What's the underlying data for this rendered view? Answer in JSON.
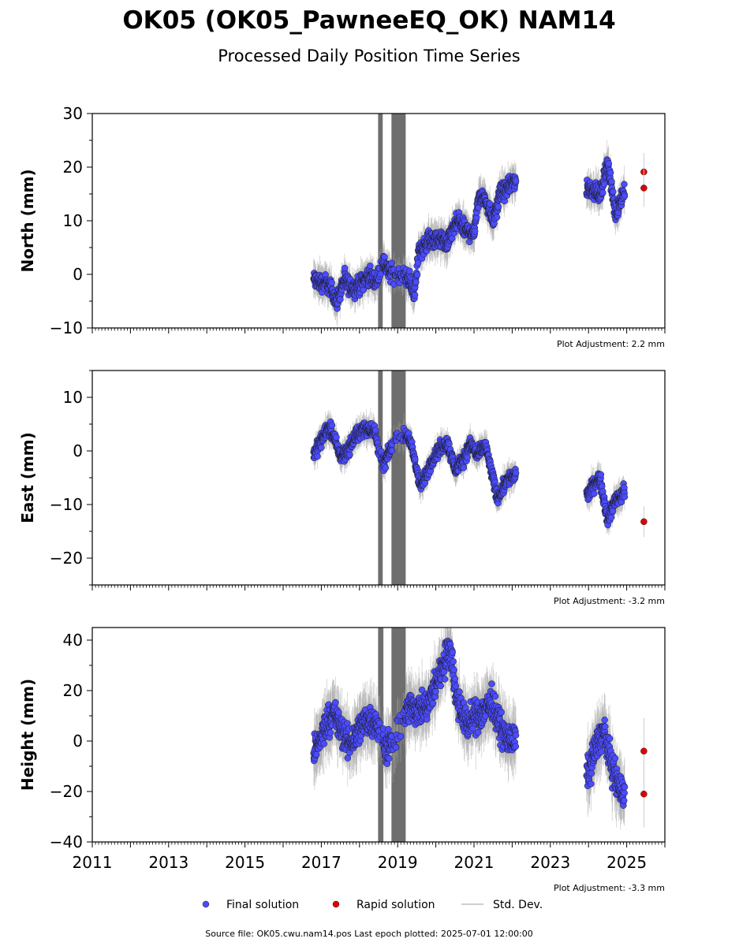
{
  "title": "OK05 (OK05_PawneeEQ_OK) NAM14",
  "subtitle": "Processed Daily Position Time Series",
  "footer": "Source file: OK05.cwu.nam14.pos  Last epoch plotted: 2025-07-01 12:00:00",
  "legend": {
    "final": "Final solution",
    "rapid": "Rapid solution",
    "std": "Std. Dev."
  },
  "colors": {
    "final": "#4b4bff",
    "rapid": "#e00000",
    "std": "#a9a9a9",
    "gap": "#6e6e6e"
  },
  "chart_data": [
    {
      "type": "scatter",
      "ylabel": "North (mm)",
      "adjustment": "Plot Adjustment: 2.2 mm",
      "xlim": [
        2011,
        2026
      ],
      "ylim": [
        -10,
        30
      ],
      "yticks": [
        -10,
        0,
        10,
        20,
        30
      ],
      "xtick_labels_visible": false,
      "trend_knots": [
        [
          2016.8,
          0.5
        ],
        [
          2017.15,
          -3
        ],
        [
          2017.4,
          -6
        ],
        [
          2017.6,
          0
        ],
        [
          2018.0,
          -2
        ],
        [
          2018.45,
          -2
        ],
        [
          2018.6,
          3.5
        ],
        [
          2019.0,
          0
        ],
        [
          2019.45,
          -4
        ],
        [
          2019.55,
          5
        ],
        [
          2019.8,
          8
        ],
        [
          2020.3,
          4
        ],
        [
          2020.45,
          8
        ],
        [
          2020.6,
          11
        ],
        [
          2021.0,
          8
        ],
        [
          2021.15,
          14
        ],
        [
          2021.5,
          10
        ],
        [
          2021.7,
          17
        ],
        [
          2022.1,
          17
        ],
        [
          2024.0,
          16
        ],
        [
          2024.3,
          13
        ],
        [
          2024.5,
          21
        ],
        [
          2024.7,
          13
        ],
        [
          2024.9,
          16
        ]
      ],
      "scatter_amplitude": 1.6,
      "annual_amplitude": 1.5,
      "rapid_points": [
        [
          2025.45,
          19.1
        ],
        [
          2025.45,
          16.1
        ]
      ],
      "gap_windows": [
        [
          2018.5,
          2018.6
        ],
        [
          2018.85,
          2019.2
        ]
      ],
      "final_range": [
        [
          2016.8,
          2022.1
        ],
        [
          2023.95,
          2024.95
        ]
      ]
    },
    {
      "type": "scatter",
      "ylabel": "East (mm)",
      "adjustment": "Plot Adjustment: -3.2 mm",
      "xlim": [
        2011,
        2026
      ],
      "ylim": [
        -25,
        15
      ],
      "yticks": [
        -20,
        -10,
        0,
        10
      ],
      "xtick_labels_visible": false,
      "trend_knots": [
        [
          2016.8,
          0.5
        ],
        [
          2017.2,
          3.5
        ],
        [
          2017.5,
          -1
        ],
        [
          2017.9,
          3.5
        ],
        [
          2018.4,
          3
        ],
        [
          2018.6,
          -2
        ],
        [
          2018.9,
          2.5
        ],
        [
          2019.3,
          1.5
        ],
        [
          2019.6,
          -6
        ],
        [
          2019.9,
          -1
        ],
        [
          2020.3,
          0.5
        ],
        [
          2020.5,
          -3.5
        ],
        [
          2020.9,
          2
        ],
        [
          2021.1,
          -1.5
        ],
        [
          2021.3,
          0
        ],
        [
          2021.6,
          -8
        ],
        [
          2021.85,
          -4.5
        ],
        [
          2022.1,
          -5
        ],
        [
          2024.0,
          -8
        ],
        [
          2024.3,
          -6
        ],
        [
          2024.5,
          -13
        ],
        [
          2024.7,
          -8
        ],
        [
          2024.95,
          -7
        ]
      ],
      "scatter_amplitude": 1.3,
      "annual_amplitude": 1.0,
      "rapid_points": [
        [
          2025.45,
          -13.2
        ]
      ],
      "gap_windows": [
        [
          2018.5,
          2018.6
        ],
        [
          2018.85,
          2019.2
        ]
      ],
      "final_range": [
        [
          2016.8,
          2022.1
        ],
        [
          2023.95,
          2024.95
        ]
      ]
    },
    {
      "type": "scatter",
      "ylabel": "Height (mm)",
      "adjustment": "Plot Adjustment: -3.3 mm",
      "xlim": [
        2011,
        2026
      ],
      "ylim": [
        -40,
        45
      ],
      "yticks": [
        -40,
        -20,
        0,
        20,
        40
      ],
      "xtick_labels_visible": true,
      "xticks": [
        2011,
        2013,
        2015,
        2017,
        2019,
        2021,
        2023,
        2025
      ],
      "xtick_labels": [
        "2011",
        "2013",
        "2015",
        "2017",
        "2019",
        "2021",
        "2023",
        "2025"
      ],
      "trend_knots": [
        [
          2016.8,
          -2
        ],
        [
          2017.3,
          8
        ],
        [
          2017.7,
          2
        ],
        [
          2018.0,
          5
        ],
        [
          2018.4,
          6
        ],
        [
          2018.7,
          0
        ],
        [
          2019.0,
          2
        ],
        [
          2019.3,
          10
        ],
        [
          2019.8,
          17
        ],
        [
          2020.2,
          28
        ],
        [
          2020.4,
          35
        ],
        [
          2020.5,
          20
        ],
        [
          2020.8,
          10
        ],
        [
          2021.2,
          8
        ],
        [
          2021.5,
          15
        ],
        [
          2021.8,
          5
        ],
        [
          2022.1,
          -2
        ],
        [
          2024.0,
          -12
        ],
        [
          2024.4,
          2
        ],
        [
          2024.7,
          -12
        ],
        [
          2024.95,
          -20
        ]
      ],
      "scatter_amplitude": 6.0,
      "annual_amplitude": 3.0,
      "rapid_points": [
        [
          2025.45,
          -4.0
        ],
        [
          2025.45,
          -21.0
        ]
      ],
      "gap_windows": [
        [
          2018.5,
          2018.62
        ],
        [
          2018.85,
          2019.2
        ]
      ],
      "final_range": [
        [
          2016.8,
          2022.1
        ],
        [
          2023.95,
          2024.95
        ]
      ]
    }
  ]
}
